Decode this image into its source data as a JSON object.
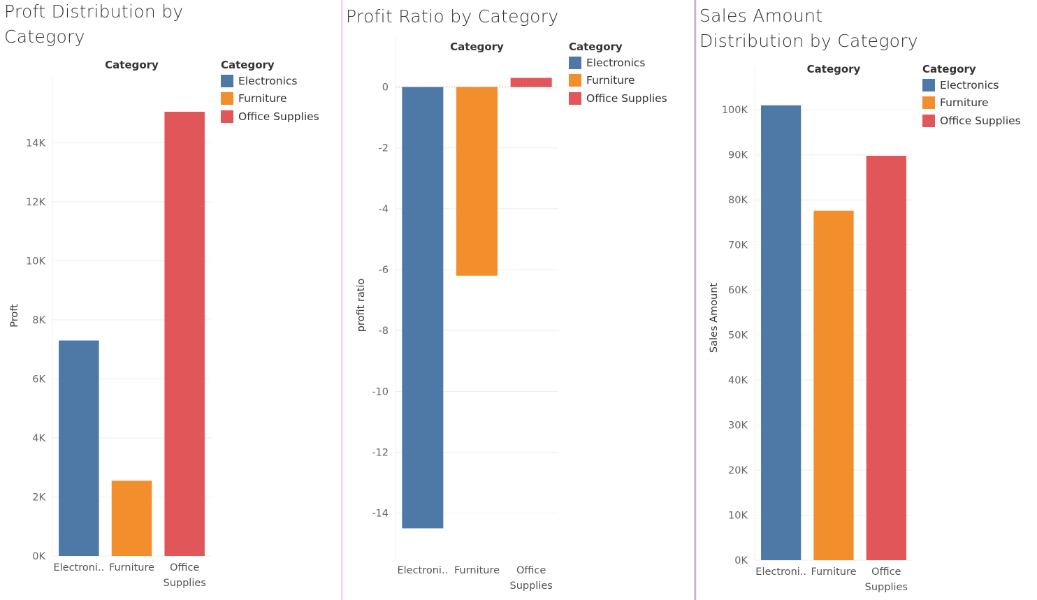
{
  "colors": {
    "Electronics": "#4e79a7",
    "Furniture": "#f28e2b",
    "Office Supplies": "#e15759"
  },
  "chart_data": [
    {
      "type": "bar",
      "title": "Proft Distribution by Category",
      "header": "Category",
      "ylabel": "Proft",
      "categories": [
        "Electronics",
        "Furniture",
        "Office Supplies"
      ],
      "tick_labels": [
        [
          "Electroni.."
        ],
        [
          "Furniture"
        ],
        [
          "Office",
          "Supplies"
        ]
      ],
      "values": [
        7300,
        2550,
        15050
      ],
      "ylim": [
        0,
        15500
      ],
      "yticks": [
        0,
        2000,
        4000,
        6000,
        8000,
        10000,
        12000,
        14000
      ],
      "ytick_labels": [
        "0K",
        "2K",
        "4K",
        "6K",
        "8K",
        "10K",
        "12K",
        "14K"
      ],
      "grid": true,
      "legend": {
        "title": "Category",
        "items": [
          "Electronics",
          "Furniture",
          "Office Supplies"
        ],
        "position": "right"
      }
    },
    {
      "type": "bar",
      "title": "Profit Ratio by Category",
      "header": "Category",
      "ylabel": "profit ratio",
      "categories": [
        "Electronics",
        "Furniture",
        "Office Supplies"
      ],
      "tick_labels": [
        [
          "Electroni.."
        ],
        [
          "Furniture"
        ],
        [
          "Office",
          "Supplies"
        ]
      ],
      "values": [
        -14.5,
        -6.2,
        0.3
      ],
      "ylim": [
        -15.5,
        1
      ],
      "yticks": [
        0,
        -2,
        -4,
        -6,
        -8,
        -10,
        -12,
        -14
      ],
      "ytick_labels": [
        "0",
        "-2",
        "-4",
        "-6",
        "-8",
        "-10",
        "-12",
        "-14"
      ],
      "grid": true,
      "legend": {
        "title": "Category",
        "items": [
          "Electronics",
          "Furniture",
          "Office Supplies"
        ],
        "position": "right"
      }
    },
    {
      "type": "bar",
      "title": "Sales Amount Distribution by Category",
      "header": "Category",
      "ylabel": "Sales Amount",
      "categories": [
        "Electronics",
        "Furniture",
        "Office Supplies"
      ],
      "tick_labels": [
        [
          "Electroni.."
        ],
        [
          "Furniture"
        ],
        [
          "Office",
          "Supplies"
        ]
      ],
      "values": [
        101000,
        77600,
        89800
      ],
      "ylim": [
        0,
        105000
      ],
      "yticks": [
        0,
        10000,
        20000,
        30000,
        40000,
        50000,
        60000,
        70000,
        80000,
        90000,
        100000
      ],
      "ytick_labels": [
        "0K",
        "10K",
        "20K",
        "30K",
        "40K",
        "50K",
        "60K",
        "70K",
        "80K",
        "90K",
        "100K"
      ],
      "grid": true,
      "legend": {
        "title": "Category",
        "items": [
          "Electronics",
          "Furniture",
          "Office Supplies"
        ],
        "position": "right"
      }
    }
  ]
}
